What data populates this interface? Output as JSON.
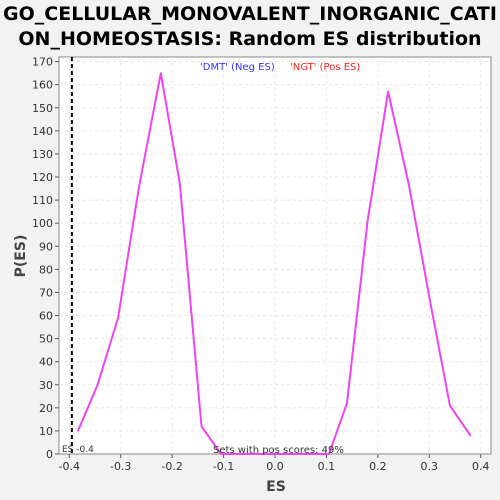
{
  "chart_data": {
    "type": "line",
    "title_line1": "GO_CELLULAR_MONOVALENT_INORGANIC_CATI",
    "title_line2": "ON_HOMEOSTASIS: Random ES distribution",
    "xlabel": "ES",
    "ylabel": "P(ES)",
    "xlim": [
      -0.42,
      0.42
    ],
    "ylim": [
      0,
      172
    ],
    "xticks": [
      -0.4,
      -0.3,
      -0.2,
      -0.1,
      0.0,
      0.1,
      0.2,
      0.3,
      0.4
    ],
    "xtick_labels": [
      "-0.4",
      "-0.3",
      "-0.2",
      "-0.1",
      "0.0",
      "0.1",
      "0.2",
      "0.3",
      "0.4"
    ],
    "yticks": [
      0,
      10,
      20,
      30,
      40,
      50,
      60,
      70,
      80,
      90,
      100,
      110,
      120,
      130,
      140,
      150,
      160,
      170
    ],
    "grid": true,
    "legend": [
      {
        "label": "'DMT' (Neg ES)",
        "color": "#3333ff"
      },
      {
        "label": "'NGT' (Pos ES)",
        "color": "#ff2222"
      }
    ],
    "series": [
      {
        "color": "#ee44ee",
        "x": [
          -0.383,
          -0.345,
          -0.305,
          -0.265,
          -0.222,
          -0.185,
          -0.143,
          -0.105,
          -0.07,
          -0.035,
          0.0,
          0.035,
          0.07,
          0.105
        ],
        "values": [
          10,
          30,
          59,
          115,
          165,
          117,
          12,
          0,
          0,
          0,
          0,
          0,
          0,
          0
        ]
      },
      {
        "color": "#ee44ee",
        "x": [
          0.105,
          0.14,
          0.18,
          0.22,
          0.26,
          0.3,
          0.34,
          0.38
        ],
        "values": [
          0,
          22,
          101,
          157,
          117,
          68,
          21,
          8
        ]
      }
    ],
    "marker_line": {
      "x": -0.395,
      "style": "dashed",
      "color": "#000000"
    },
    "annotations": {
      "es_label": "ES -0.4",
      "pos_scores": "Sets with pos scores: 49%"
    }
  }
}
